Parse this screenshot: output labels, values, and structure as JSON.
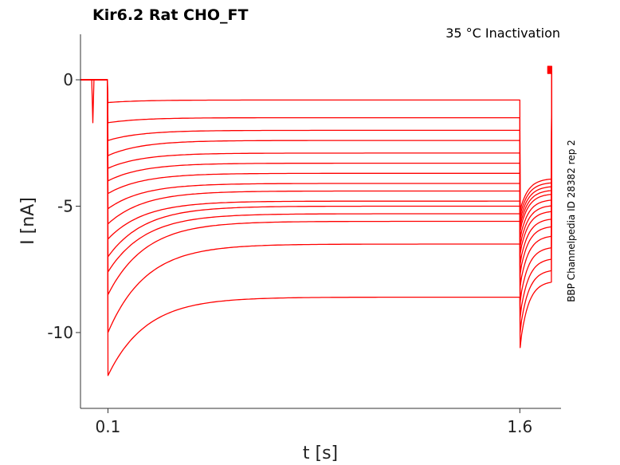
{
  "chart_data": {
    "type": "line",
    "title": "Kir6.2  Rat  CHO_FT",
    "subtitle": "35 °C  Inactivation",
    "xlabel": "t [s]",
    "ylabel": "I [nA]",
    "side_label": "BBP Channelpedia ID 28382 rep 2",
    "x_ticks": [
      0.1,
      1.6
    ],
    "x_tick_labels": [
      "0.1",
      "1.6"
    ],
    "y_ticks": [
      0,
      -5,
      -10
    ],
    "y_tick_labels": [
      "0",
      "-5",
      "-10"
    ],
    "xlim": [
      0.0,
      1.75
    ],
    "ylim": [
      -13.0,
      1.8
    ],
    "grid": false,
    "legend": "none",
    "trace_color": "#ff0000",
    "protocol": {
      "prepulse_start": 0.0,
      "artifact_time": 0.045,
      "artifact_min": -1.7,
      "step_start": 0.1,
      "step_end": 1.6,
      "tail_end": 1.7
    },
    "series": [
      {
        "initial": -0.9,
        "final": -0.8,
        "tail": -5.2
      },
      {
        "initial": -1.7,
        "final": -1.5,
        "tail": -5.4
      },
      {
        "initial": -2.4,
        "final": -2.0,
        "tail": -5.6
      },
      {
        "initial": -3.0,
        "final": -2.4,
        "tail": -5.8
      },
      {
        "initial": -3.5,
        "final": -2.9,
        "tail": -6.0
      },
      {
        "initial": -4.0,
        "final": -3.3,
        "tail": -6.3
      },
      {
        "initial": -4.5,
        "final": -3.7,
        "tail": -6.6
      },
      {
        "initial": -5.1,
        "final": -4.1,
        "tail": -6.9
      },
      {
        "initial": -5.7,
        "final": -4.4,
        "tail": -7.3
      },
      {
        "initial": -6.3,
        "final": -4.8,
        "tail": -7.7
      },
      {
        "initial": -7.0,
        "final": -5.0,
        "tail": -8.2
      },
      {
        "initial": -7.6,
        "final": -5.3,
        "tail": -8.8
      },
      {
        "initial": -8.5,
        "final": -5.6,
        "tail": -9.4
      },
      {
        "initial": -10.0,
        "final": -6.5,
        "tail": -10.0
      },
      {
        "initial": -11.7,
        "final": -8.6,
        "tail": -10.6
      }
    ]
  }
}
